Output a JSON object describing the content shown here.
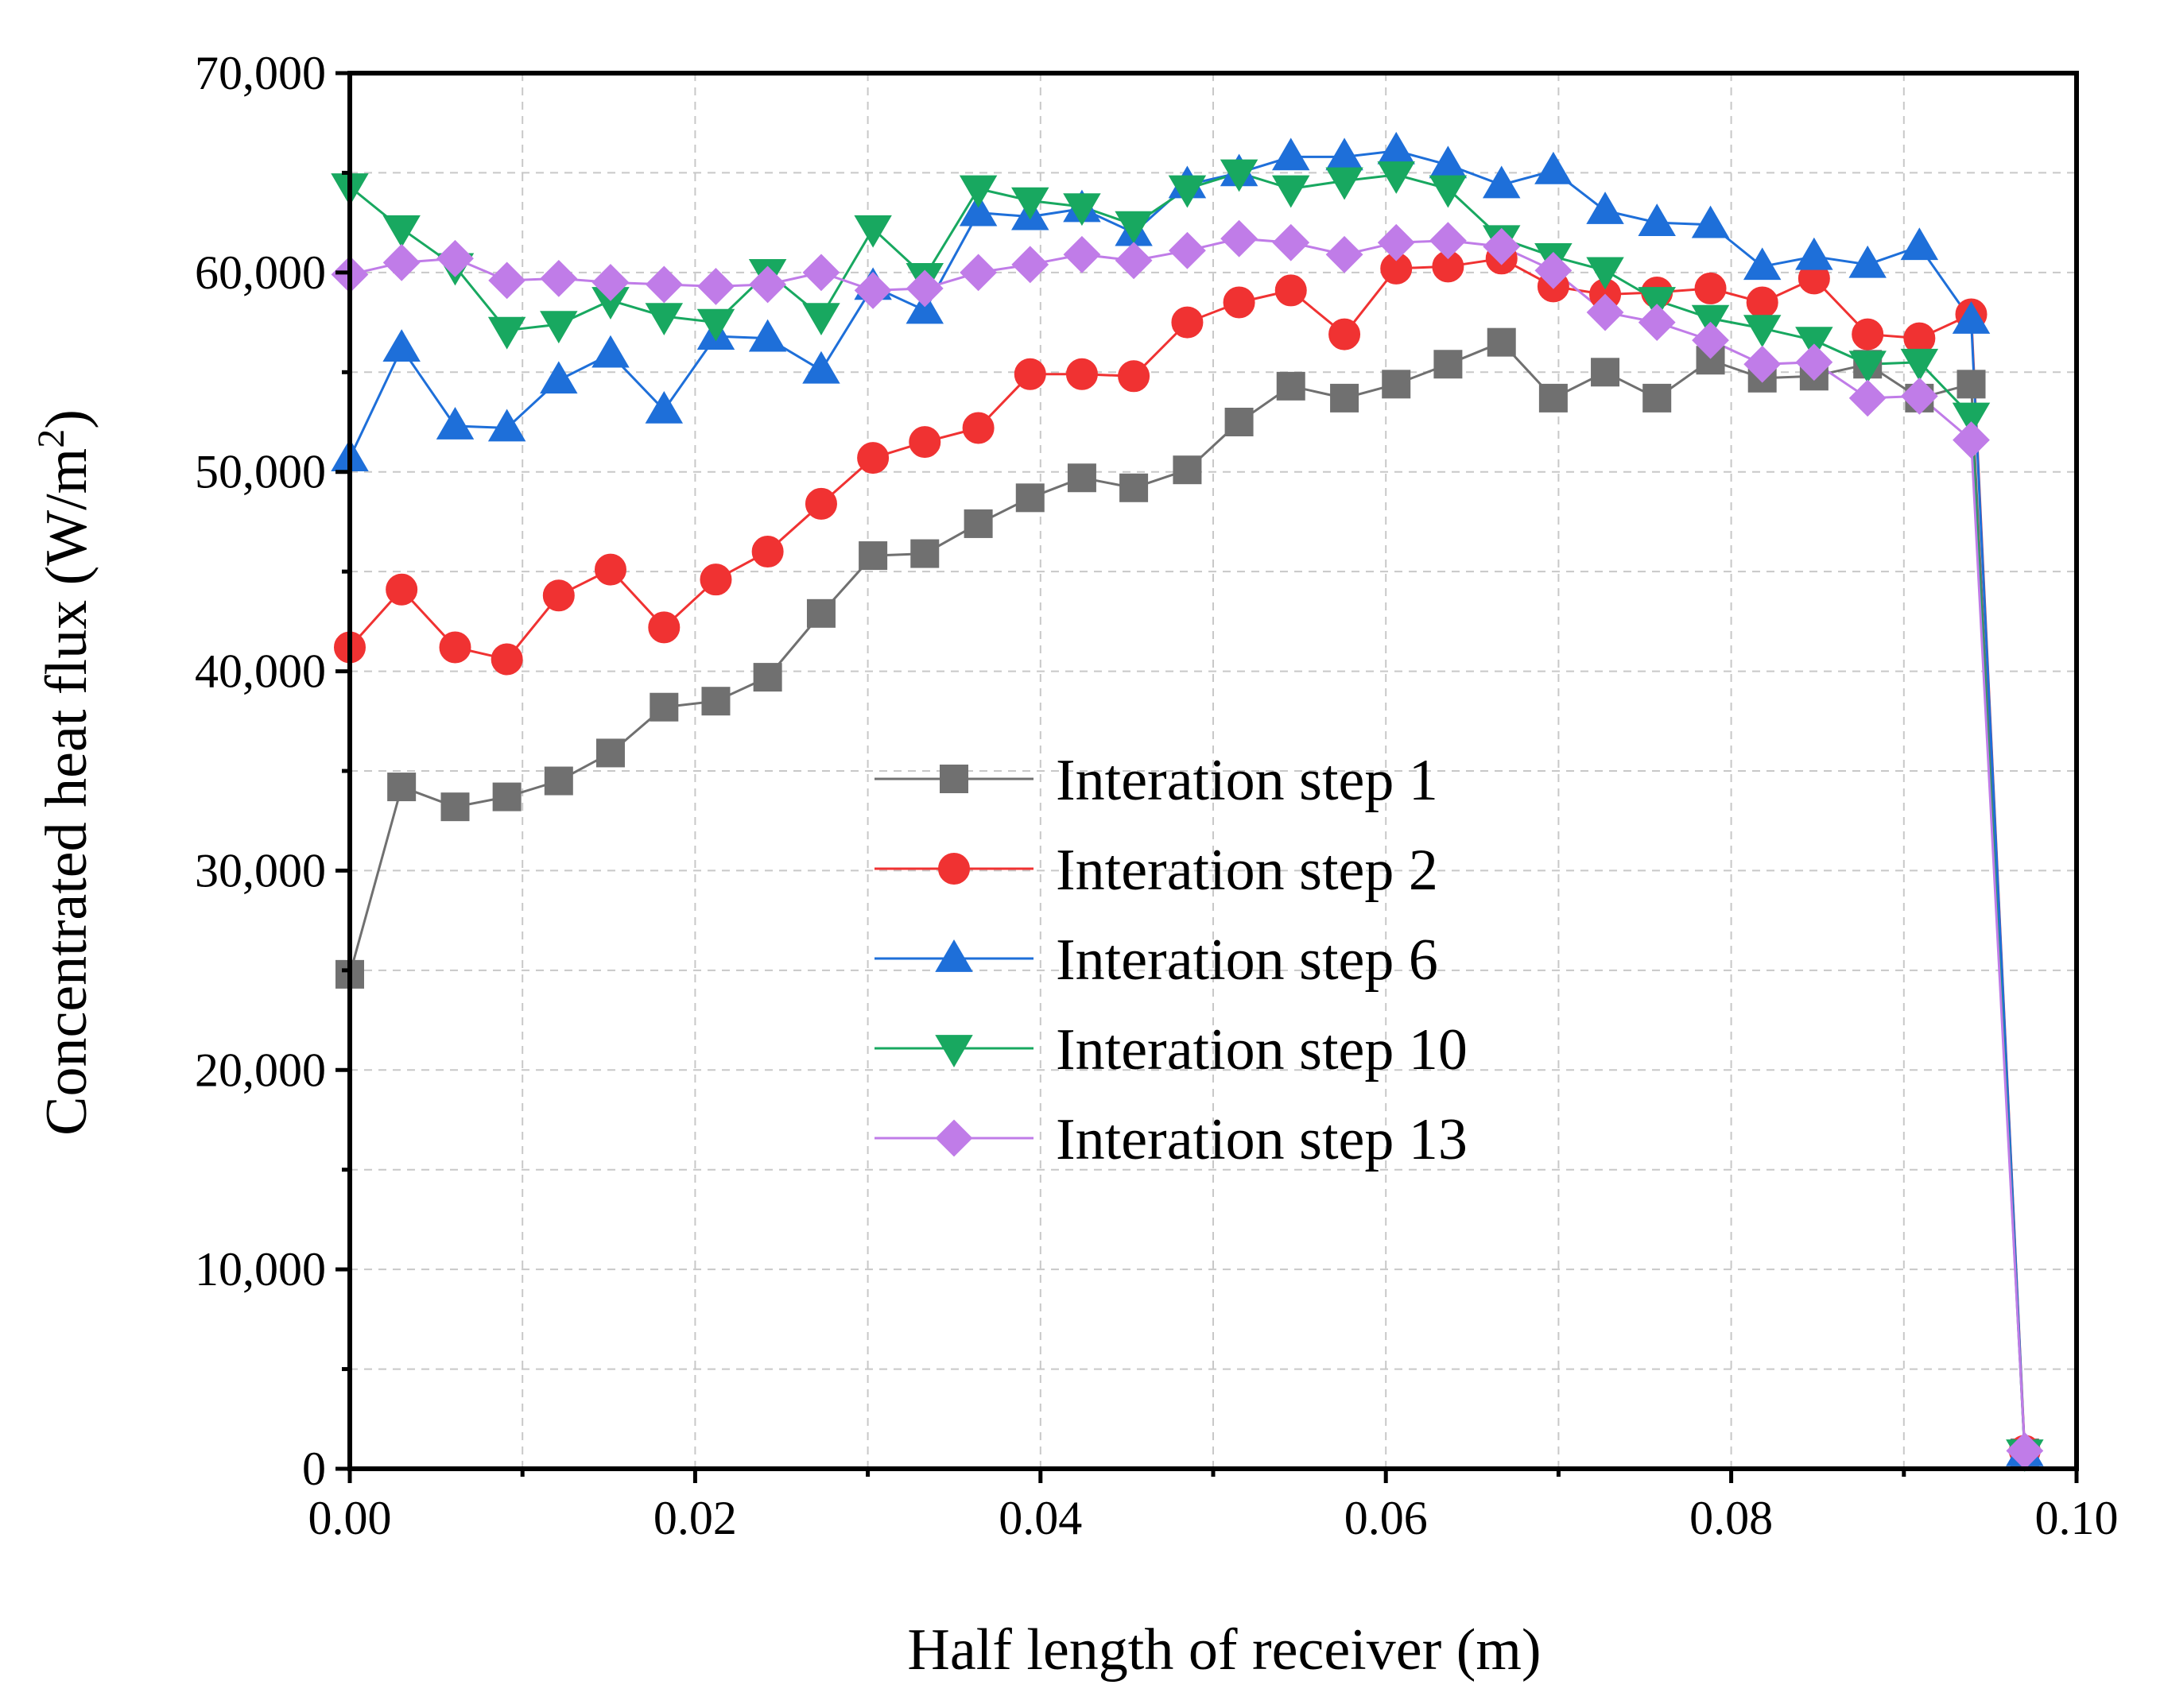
{
  "chart_data": {
    "type": "line",
    "title": "",
    "xlabel": "Half length of receiver (m)",
    "ylabel_main": "Concentrated heat flux (W/m",
    "ylabel_sup": "2",
    "ylabel_end": ")",
    "xlim": [
      0,
      0.1
    ],
    "ylim": [
      0,
      70000
    ],
    "grid": true,
    "legend_position": "center",
    "x_ticks": [
      0,
      0.02,
      0.04,
      0.06,
      0.08,
      0.1
    ],
    "x_tick_labels": [
      "0.00",
      "0.02",
      "0.04",
      "0.06",
      "0.08",
      "0.10"
    ],
    "y_ticks": [
      0,
      10000,
      20000,
      30000,
      40000,
      50000,
      60000,
      70000
    ],
    "y_tick_labels": [
      "0",
      "10,000",
      "20,000",
      "30,000",
      "40,000",
      "50,000",
      "60,000",
      "70,000"
    ],
    "x": [
      0.0,
      0.003,
      0.0061,
      0.0091,
      0.0121,
      0.0151,
      0.0182,
      0.0212,
      0.0242,
      0.0273,
      0.0303,
      0.0333,
      0.0364,
      0.0394,
      0.0424,
      0.0454,
      0.0485,
      0.0515,
      0.0545,
      0.0576,
      0.0606,
      0.0636,
      0.0667,
      0.0697,
      0.0727,
      0.0757,
      0.0788,
      0.0818,
      0.0848,
      0.0879,
      0.0909,
      0.0939,
      0.097
    ],
    "series": [
      {
        "name": "Interation step 1",
        "color": "#707070",
        "marker": "square",
        "values": [
          24800,
          34200,
          33200,
          33700,
          34500,
          35900,
          38200,
          38500,
          39700,
          42900,
          45800,
          45900,
          47400,
          48700,
          49700,
          49200,
          50100,
          52500,
          54300,
          53700,
          54400,
          55400,
          56500,
          53700,
          55000,
          53700,
          55600,
          54700,
          54800,
          55400,
          53700,
          54400,
          800
        ]
      },
      {
        "name": "Interation step 2",
        "color": "#f03232",
        "marker": "circle",
        "values": [
          41200,
          44100,
          41200,
          40600,
          43800,
          45100,
          42200,
          44600,
          46000,
          48400,
          50700,
          51500,
          52200,
          54900,
          54900,
          54800,
          57500,
          58500,
          59100,
          56900,
          60200,
          60300,
          60700,
          59300,
          58900,
          59000,
          59200,
          58500,
          59700,
          56900,
          56700,
          57900,
          900
        ]
      },
      {
        "name": "Interation step 6",
        "color": "#1e6fd9",
        "marker": "triangle-up",
        "values": [
          50700,
          56200,
          52300,
          52200,
          54600,
          55900,
          53100,
          56800,
          56700,
          55100,
          59300,
          58100,
          63000,
          62800,
          63200,
          62000,
          64400,
          65000,
          65800,
          65800,
          66100,
          65400,
          64400,
          65100,
          63100,
          62500,
          62400,
          60300,
          60800,
          60400,
          61300,
          57600,
          800
        ]
      },
      {
        "name": "Interation step 10",
        "color": "#18a860",
        "marker": "triangle-down",
        "values": [
          64300,
          62200,
          60300,
          57100,
          57400,
          58600,
          57800,
          57500,
          60000,
          57800,
          62200,
          59800,
          64200,
          63600,
          63300,
          62400,
          64200,
          65000,
          64200,
          64600,
          64900,
          64200,
          61700,
          60800,
          60100,
          58600,
          57700,
          57200,
          56600,
          55400,
          55500,
          52800,
          800
        ]
      },
      {
        "name": "Interation step 13",
        "color": "#c07ce8",
        "marker": "diamond",
        "values": [
          59900,
          60500,
          60700,
          59600,
          59700,
          59500,
          59400,
          59300,
          59400,
          60000,
          59100,
          59200,
          60000,
          60400,
          60900,
          60600,
          61100,
          61700,
          61500,
          60900,
          61500,
          61600,
          61300,
          60100,
          58000,
          57500,
          56600,
          55400,
          55500,
          53700,
          53800,
          51600,
          900
        ]
      }
    ]
  }
}
